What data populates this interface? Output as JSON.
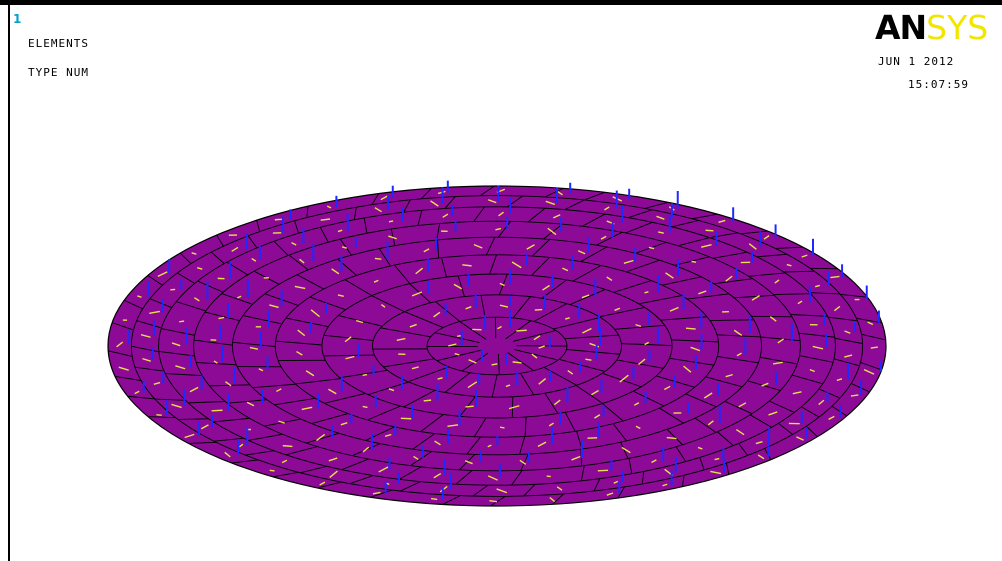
{
  "viewport": {
    "window_number": "1"
  },
  "legend": {
    "line1": "ELEMENTS",
    "line2": "TYPE NUM"
  },
  "logo": {
    "part1": "AN",
    "part2": "SYS",
    "colors": {
      "part1": "#000000",
      "part2": "#f2e600"
    }
  },
  "stamp": {
    "date": "JUN  1 2012",
    "time": "15:07:59"
  },
  "colors": {
    "plate_fill": "#8c0a96",
    "mesh_lines": "#000000",
    "normal_vectors": "#1e28ff",
    "element_numbers": "#e8e04a",
    "window_number": "#00a0c8"
  },
  "model": {
    "shape": "circular plate (shell elements)",
    "view": "oblique"
  }
}
